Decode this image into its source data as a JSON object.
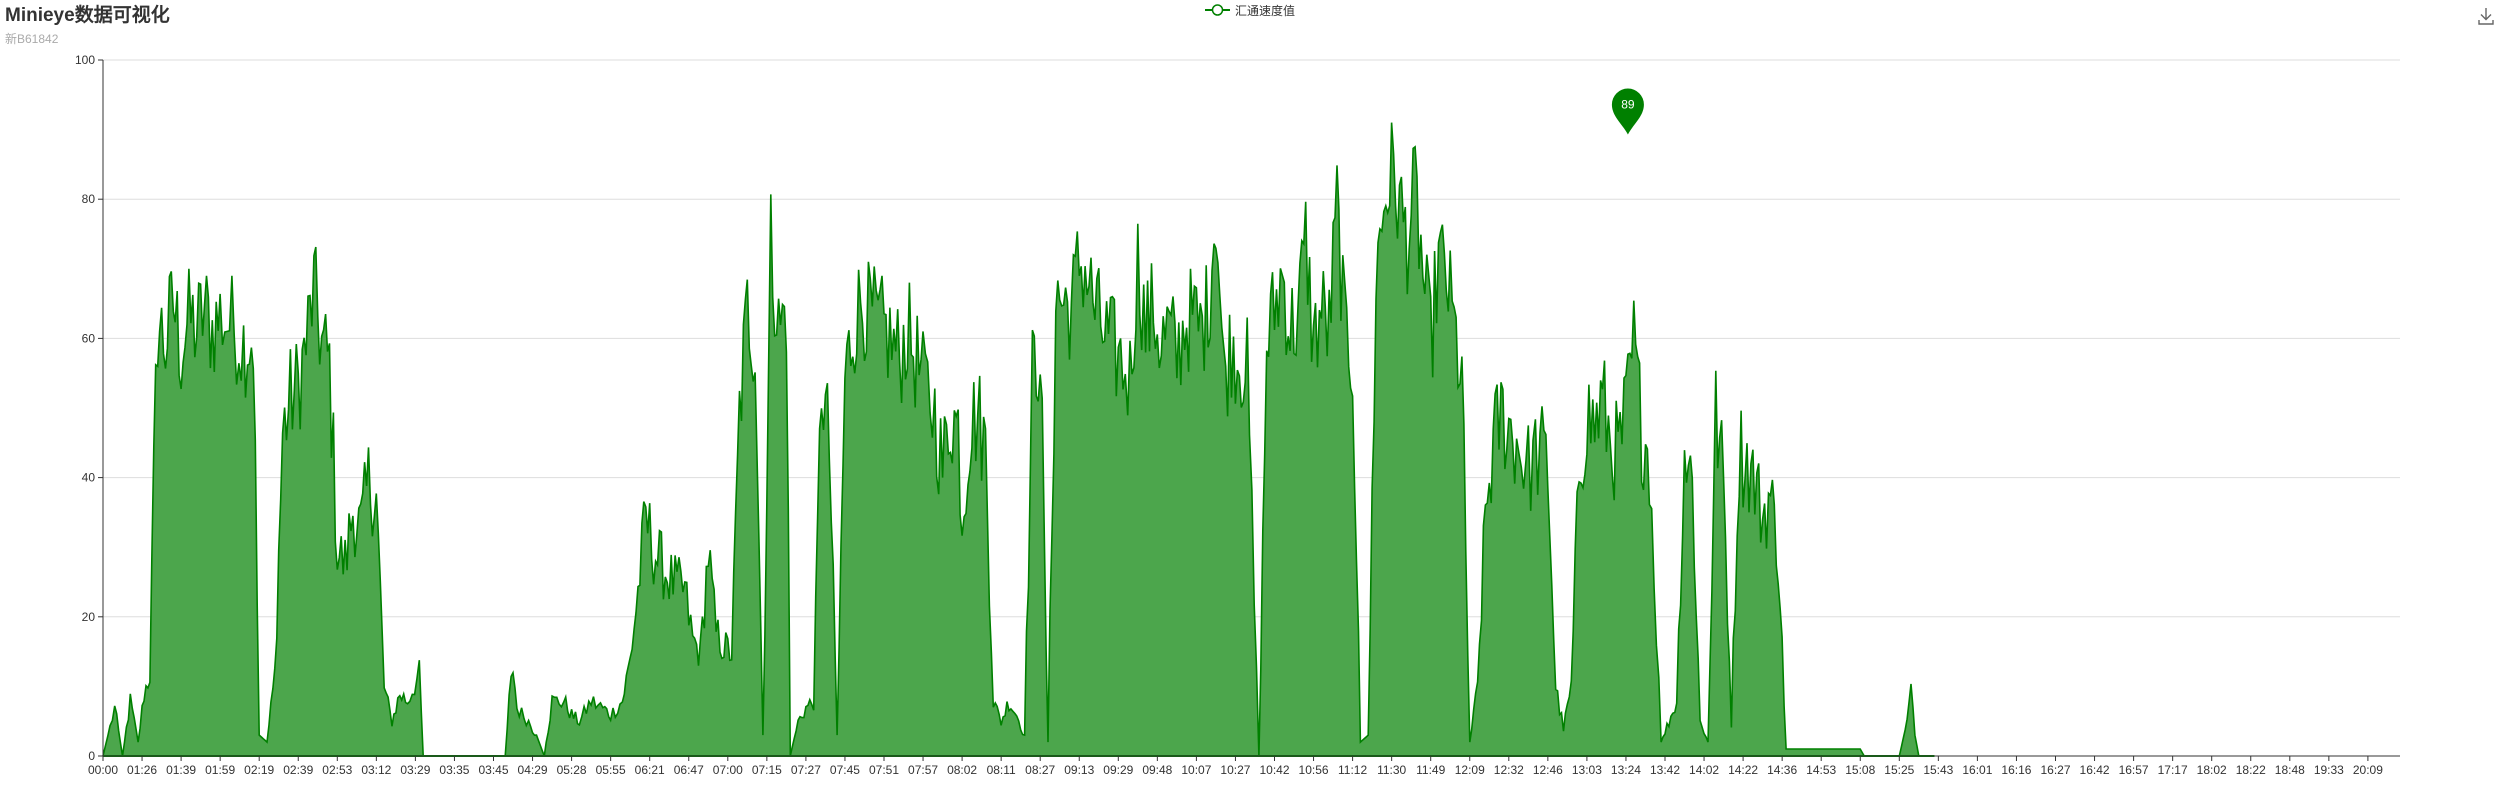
{
  "chart_data": {
    "type": "area",
    "title": "Minieye数据可视化",
    "subtitle": "新B61842",
    "xlabel": "",
    "ylabel": "",
    "ylim": [
      0,
      100
    ],
    "y_ticks": [
      0,
      20,
      40,
      60,
      80,
      100
    ],
    "grid": true,
    "legend_position": "top-center",
    "x_tick_labels": [
      "00:00",
      "01:26",
      "01:39",
      "01:59",
      "02:19",
      "02:39",
      "02:53",
      "03:12",
      "03:29",
      "03:35",
      "03:45",
      "04:29",
      "05:28",
      "05:55",
      "06:21",
      "06:47",
      "07:00",
      "07:15",
      "07:27",
      "07:45",
      "07:51",
      "07:57",
      "08:02",
      "08:11",
      "08:27",
      "09:13",
      "09:29",
      "09:48",
      "10:07",
      "10:27",
      "10:42",
      "10:56",
      "11:12",
      "11:30",
      "11:49",
      "12:09",
      "12:32",
      "12:46",
      "13:03",
      "13:24",
      "13:42",
      "14:02",
      "14:22",
      "14:36",
      "14:53",
      "15:08",
      "15:25",
      "15:43",
      "16:01",
      "16:16",
      "16:27",
      "16:42",
      "16:57",
      "17:17",
      "18:02",
      "18:22",
      "18:48",
      "19:33",
      "20:09"
    ],
    "series": [
      {
        "name": "汇通速度值",
        "color": "#008000",
        "fill_color": "#4ca64c",
        "max_marker": {
          "value": 89,
          "label": "89",
          "at_x": 39.05
        },
        "envelope": [
          [
            0,
            0
          ],
          [
            0.3,
            7
          ],
          [
            0.5,
            0
          ],
          [
            0.7,
            8
          ],
          [
            0.9,
            2
          ],
          [
            1.05,
            9
          ],
          [
            1.2,
            12
          ],
          [
            1.3,
            40
          ],
          [
            1.4,
            63
          ],
          [
            1.6,
            60
          ],
          [
            1.8,
            66
          ],
          [
            2.0,
            59
          ],
          [
            2.2,
            64
          ],
          [
            2.4,
            62
          ],
          [
            2.6,
            65
          ],
          [
            2.8,
            62
          ],
          [
            3.0,
            64
          ],
          [
            3.3,
            63
          ],
          [
            3.6,
            60
          ],
          [
            3.85,
            61
          ],
          [
            4.0,
            3
          ],
          [
            4.2,
            2
          ],
          [
            4.4,
            12
          ],
          [
            4.6,
            47
          ],
          [
            4.8,
            52
          ],
          [
            5.0,
            54
          ],
          [
            5.2,
            60
          ],
          [
            5.4,
            68
          ],
          [
            5.6,
            60
          ],
          [
            5.8,
            57
          ],
          [
            6.0,
            30
          ],
          [
            6.2,
            28
          ],
          [
            6.4,
            36
          ],
          [
            6.6,
            33
          ],
          [
            6.8,
            40
          ],
          [
            7.0,
            38
          ],
          [
            7.2,
            10
          ],
          [
            7.4,
            5
          ],
          [
            7.6,
            9
          ],
          [
            7.8,
            8
          ],
          [
            8.1,
            12
          ],
          [
            8.2,
            0
          ],
          [
            10.3,
            0
          ],
          [
            10.4,
            8
          ],
          [
            10.5,
            13
          ],
          [
            10.6,
            7
          ],
          [
            10.9,
            5
          ],
          [
            11.1,
            3
          ],
          [
            11.3,
            0
          ],
          [
            11.5,
            8
          ],
          [
            11.8,
            8
          ],
          [
            12.0,
            6
          ],
          [
            12.2,
            5
          ],
          [
            12.5,
            8
          ],
          [
            12.8,
            7
          ],
          [
            13.0,
            6
          ],
          [
            13.3,
            8
          ],
          [
            13.5,
            14
          ],
          [
            13.7,
            24
          ],
          [
            13.9,
            35
          ],
          [
            14.1,
            30
          ],
          [
            14.3,
            28
          ],
          [
            14.5,
            26
          ],
          [
            14.7,
            25
          ],
          [
            14.9,
            24
          ],
          [
            15.1,
            17
          ],
          [
            15.3,
            15
          ],
          [
            15.5,
            30
          ],
          [
            15.7,
            18
          ],
          [
            15.9,
            16
          ],
          [
            16.1,
            15
          ],
          [
            16.3,
            50
          ],
          [
            16.5,
            65
          ],
          [
            16.7,
            60
          ],
          [
            16.9,
            3
          ],
          [
            17.1,
            75
          ],
          [
            17.3,
            62
          ],
          [
            17.5,
            65
          ],
          [
            17.6,
            0
          ],
          [
            17.8,
            5
          ],
          [
            18.0,
            7
          ],
          [
            18.2,
            8
          ],
          [
            18.4,
            55
          ],
          [
            18.6,
            45
          ],
          [
            18.8,
            3
          ],
          [
            19.0,
            55
          ],
          [
            19.2,
            62
          ],
          [
            19.4,
            66
          ],
          [
            19.6,
            65
          ],
          [
            19.8,
            63
          ],
          [
            20.0,
            62
          ],
          [
            20.2,
            60
          ],
          [
            20.4,
            58
          ],
          [
            20.6,
            62
          ],
          [
            20.8,
            58
          ],
          [
            21.0,
            55
          ],
          [
            21.3,
            50
          ],
          [
            21.5,
            42
          ],
          [
            21.7,
            50
          ],
          [
            21.9,
            48
          ],
          [
            22.0,
            35
          ],
          [
            22.2,
            48
          ],
          [
            22.4,
            50
          ],
          [
            22.6,
            45
          ],
          [
            22.8,
            8
          ],
          [
            23.0,
            5
          ],
          [
            23.2,
            8
          ],
          [
            23.4,
            6
          ],
          [
            23.6,
            3
          ],
          [
            23.8,
            55
          ],
          [
            24.0,
            60
          ],
          [
            24.2,
            2
          ],
          [
            24.4,
            67
          ],
          [
            24.6,
            66
          ],
          [
            24.8,
            65
          ],
          [
            25.0,
            72
          ],
          [
            25.2,
            70
          ],
          [
            25.4,
            65
          ],
          [
            25.6,
            62
          ],
          [
            25.8,
            60
          ],
          [
            26.0,
            58
          ],
          [
            26.3,
            55
          ],
          [
            26.5,
            72
          ],
          [
            26.7,
            62
          ],
          [
            26.9,
            65
          ],
          [
            27.1,
            60
          ],
          [
            27.3,
            62
          ],
          [
            27.5,
            58
          ],
          [
            27.7,
            63
          ],
          [
            27.9,
            64
          ],
          [
            28.1,
            62
          ],
          [
            28.3,
            65
          ],
          [
            28.5,
            80
          ],
          [
            28.7,
            55
          ],
          [
            28.9,
            60
          ],
          [
            29.1,
            58
          ],
          [
            29.3,
            57
          ],
          [
            29.6,
            0
          ],
          [
            29.8,
            60
          ],
          [
            30.0,
            65
          ],
          [
            30.2,
            70
          ],
          [
            30.4,
            62
          ],
          [
            30.6,
            64
          ],
          [
            30.8,
            75
          ],
          [
            31.0,
            60
          ],
          [
            31.2,
            65
          ],
          [
            31.4,
            62
          ],
          [
            31.6,
            80
          ],
          [
            31.8,
            62
          ],
          [
            32.0,
            58
          ],
          [
            32.2,
            2
          ],
          [
            32.4,
            3
          ],
          [
            32.6,
            70
          ],
          [
            32.8,
            80
          ],
          [
            33.0,
            85
          ],
          [
            33.2,
            80
          ],
          [
            33.4,
            75
          ],
          [
            33.6,
            82
          ],
          [
            33.8,
            70
          ],
          [
            34.0,
            60
          ],
          [
            34.2,
            72
          ],
          [
            34.4,
            70
          ],
          [
            34.6,
            62
          ],
          [
            34.8,
            55
          ],
          [
            35.0,
            2
          ],
          [
            35.2,
            10
          ],
          [
            35.4,
            35
          ],
          [
            35.6,
            45
          ],
          [
            35.8,
            50
          ],
          [
            36.0,
            48
          ],
          [
            36.2,
            46
          ],
          [
            36.5,
            42
          ],
          [
            36.8,
            45
          ],
          [
            37.0,
            42
          ],
          [
            37.2,
            10
          ],
          [
            37.4,
            4
          ],
          [
            37.6,
            10
          ],
          [
            37.8,
            42
          ],
          [
            38.0,
            50
          ],
          [
            38.2,
            48
          ],
          [
            38.4,
            52
          ],
          [
            38.6,
            46
          ],
          [
            38.8,
            44
          ],
          [
            39.0,
            50
          ],
          [
            39.2,
            60
          ],
          [
            39.4,
            48
          ],
          [
            39.6,
            44
          ],
          [
            39.9,
            2
          ],
          [
            40.1,
            5
          ],
          [
            40.3,
            8
          ],
          [
            40.5,
            45
          ],
          [
            40.7,
            40
          ],
          [
            40.9,
            5
          ],
          [
            41.1,
            2
          ],
          [
            41.3,
            50
          ],
          [
            41.5,
            40
          ],
          [
            41.7,
            5
          ],
          [
            41.9,
            45
          ],
          [
            42.1,
            43
          ],
          [
            42.3,
            40
          ],
          [
            42.5,
            35
          ],
          [
            42.7,
            38
          ],
          [
            42.9,
            30
          ],
          [
            43.1,
            1
          ],
          [
            45.0,
            1
          ],
          [
            45.1,
            0
          ],
          [
            46.0,
            0
          ],
          [
            46.2,
            5
          ],
          [
            46.3,
            10
          ],
          [
            46.4,
            3
          ],
          [
            46.5,
            0
          ],
          [
            46.9,
            0
          ]
        ]
      }
    ]
  },
  "toolbox": {
    "download_icon": "download-icon"
  }
}
